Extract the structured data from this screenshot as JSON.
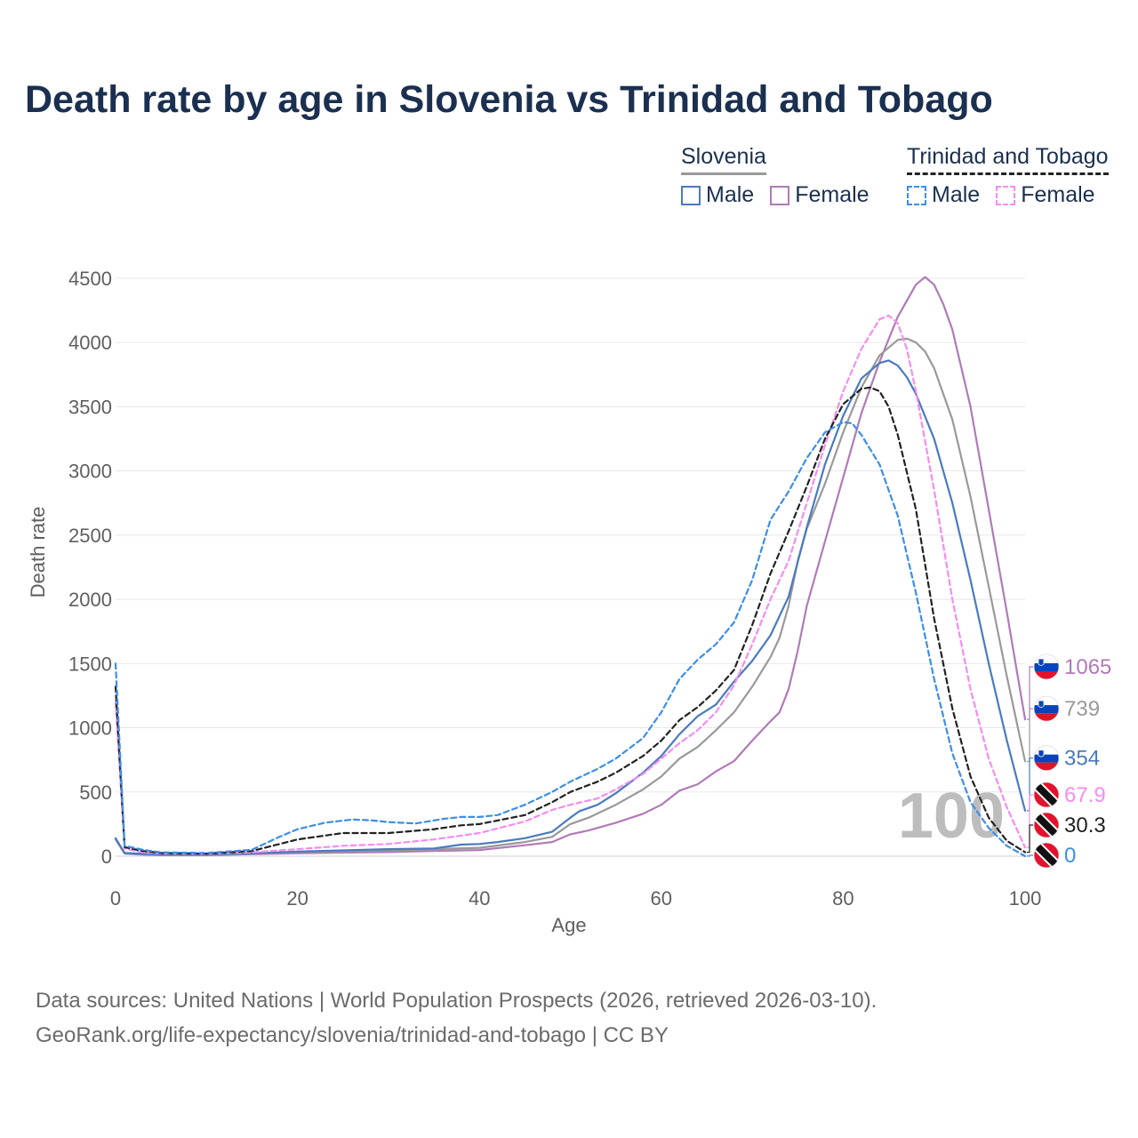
{
  "title": "Death rate by age in Slovenia vs Trinidad and Tobago",
  "legend": {
    "groups": [
      {
        "label": "Slovenia",
        "line_style": "solid",
        "color": "#999999",
        "items": [
          {
            "label": "Male",
            "color": "#4a7abf",
            "dash": false
          },
          {
            "label": "Female",
            "color": "#b07ab8",
            "dash": false
          }
        ]
      },
      {
        "label": "Trinidad and Tobago",
        "line_style": "dashed",
        "color": "#222222",
        "items": [
          {
            "label": "Male",
            "color": "#3c8ee8",
            "dash": true
          },
          {
            "label": "Female",
            "color": "#f58cf0",
            "dash": true
          }
        ]
      }
    ]
  },
  "watermark": "100",
  "footer": {
    "line1": "Data sources: United Nations | World Population Prospects (2026, retrieved 2026-03-10).",
    "line2": "GeoRank.org/life-expectancy/slovenia/trinidad-and-tobago | CC BY"
  },
  "chart_data": {
    "type": "line",
    "xlabel": "Age",
    "ylabel": "Death rate",
    "xlim": [
      0,
      100
    ],
    "ylim": [
      0,
      4500
    ],
    "xticks": [
      0,
      20,
      40,
      60,
      80,
      100
    ],
    "yticks": [
      0,
      500,
      1000,
      1500,
      2000,
      2500,
      3000,
      3500,
      4000,
      4500
    ],
    "grid": true,
    "series": [
      {
        "name": "Slovenia Female",
        "country": "Slovenia",
        "color": "#b07ab8",
        "dash": false,
        "end_label": "1065",
        "points": [
          [
            0,
            130
          ],
          [
            1,
            20
          ],
          [
            3,
            12
          ],
          [
            5,
            8
          ],
          [
            10,
            8
          ],
          [
            15,
            15
          ],
          [
            20,
            22
          ],
          [
            25,
            28
          ],
          [
            30,
            32
          ],
          [
            35,
            40
          ],
          [
            40,
            48
          ],
          [
            45,
            85
          ],
          [
            48,
            110
          ],
          [
            50,
            170
          ],
          [
            52,
            200
          ],
          [
            55,
            260
          ],
          [
            58,
            330
          ],
          [
            60,
            400
          ],
          [
            62,
            510
          ],
          [
            64,
            560
          ],
          [
            66,
            660
          ],
          [
            68,
            740
          ],
          [
            70,
            900
          ],
          [
            72,
            1050
          ],
          [
            73,
            1120
          ],
          [
            74,
            1300
          ],
          [
            75,
            1600
          ],
          [
            76,
            1950
          ],
          [
            78,
            2450
          ],
          [
            80,
            2950
          ],
          [
            82,
            3450
          ],
          [
            84,
            3850
          ],
          [
            86,
            4200
          ],
          [
            88,
            4450
          ],
          [
            89,
            4510
          ],
          [
            90,
            4450
          ],
          [
            91,
            4300
          ],
          [
            92,
            4100
          ],
          [
            94,
            3500
          ],
          [
            96,
            2700
          ],
          [
            98,
            1900
          ],
          [
            100,
            1065
          ]
        ]
      },
      {
        "name": "Slovenia Total",
        "country": "Slovenia",
        "color": "#999999",
        "dash": false,
        "end_label": "739",
        "points": [
          [
            0,
            135
          ],
          [
            1,
            22
          ],
          [
            3,
            15
          ],
          [
            5,
            10
          ],
          [
            10,
            10
          ],
          [
            15,
            20
          ],
          [
            20,
            30
          ],
          [
            25,
            38
          ],
          [
            30,
            45
          ],
          [
            35,
            55
          ],
          [
            40,
            65
          ],
          [
            45,
            110
          ],
          [
            48,
            150
          ],
          [
            50,
            250
          ],
          [
            52,
            300
          ],
          [
            55,
            400
          ],
          [
            58,
            520
          ],
          [
            60,
            620
          ],
          [
            62,
            760
          ],
          [
            64,
            850
          ],
          [
            66,
            980
          ],
          [
            68,
            1120
          ],
          [
            70,
            1320
          ],
          [
            72,
            1550
          ],
          [
            73,
            1700
          ],
          [
            74,
            1950
          ],
          [
            75,
            2300
          ],
          [
            76,
            2550
          ],
          [
            78,
            2900
          ],
          [
            80,
            3300
          ],
          [
            82,
            3650
          ],
          [
            84,
            3900
          ],
          [
            86,
            4020
          ],
          [
            87,
            4030
          ],
          [
            88,
            4000
          ],
          [
            89,
            3930
          ],
          [
            90,
            3800
          ],
          [
            92,
            3400
          ],
          [
            94,
            2800
          ],
          [
            96,
            2100
          ],
          [
            98,
            1400
          ],
          [
            100,
            739
          ]
        ]
      },
      {
        "name": "Slovenia Male",
        "country": "Slovenia",
        "color": "#4a7abf",
        "dash": false,
        "end_label": "354",
        "points": [
          [
            0,
            140
          ],
          [
            1,
            25
          ],
          [
            3,
            18
          ],
          [
            5,
            12
          ],
          [
            10,
            12
          ],
          [
            15,
            22
          ],
          [
            20,
            35
          ],
          [
            25,
            45
          ],
          [
            30,
            55
          ],
          [
            35,
            60
          ],
          [
            38,
            90
          ],
          [
            40,
            95
          ],
          [
            42,
            110
          ],
          [
            45,
            140
          ],
          [
            48,
            190
          ],
          [
            50,
            300
          ],
          [
            51,
            350
          ],
          [
            53,
            400
          ],
          [
            55,
            490
          ],
          [
            58,
            650
          ],
          [
            60,
            780
          ],
          [
            62,
            950
          ],
          [
            64,
            1090
          ],
          [
            66,
            1180
          ],
          [
            68,
            1360
          ],
          [
            70,
            1520
          ],
          [
            72,
            1720
          ],
          [
            74,
            2020
          ],
          [
            76,
            2560
          ],
          [
            78,
            3050
          ],
          [
            80,
            3430
          ],
          [
            82,
            3720
          ],
          [
            84,
            3840
          ],
          [
            85,
            3860
          ],
          [
            86,
            3820
          ],
          [
            87,
            3730
          ],
          [
            88,
            3600
          ],
          [
            90,
            3250
          ],
          [
            92,
            2750
          ],
          [
            94,
            2150
          ],
          [
            96,
            1500
          ],
          [
            98,
            900
          ],
          [
            100,
            354
          ]
        ]
      },
      {
        "name": "Trinidad and Tobago Female",
        "country": "Trinidad and Tobago",
        "color": "#f58cf0",
        "dash": true,
        "end_label": "67.9",
        "points": [
          [
            0,
            1200
          ],
          [
            1,
            60
          ],
          [
            3,
            30
          ],
          [
            5,
            20
          ],
          [
            10,
            18
          ],
          [
            15,
            30
          ],
          [
            20,
            55
          ],
          [
            25,
            80
          ],
          [
            30,
            95
          ],
          [
            35,
            130
          ],
          [
            40,
            180
          ],
          [
            45,
            270
          ],
          [
            48,
            360
          ],
          [
            50,
            400
          ],
          [
            53,
            450
          ],
          [
            55,
            520
          ],
          [
            58,
            640
          ],
          [
            60,
            760
          ],
          [
            62,
            880
          ],
          [
            64,
            980
          ],
          [
            66,
            1120
          ],
          [
            68,
            1330
          ],
          [
            70,
            1650
          ],
          [
            72,
            2000
          ],
          [
            74,
            2300
          ],
          [
            76,
            2750
          ],
          [
            78,
            3200
          ],
          [
            80,
            3620
          ],
          [
            82,
            3950
          ],
          [
            84,
            4180
          ],
          [
            85,
            4210
          ],
          [
            86,
            4150
          ],
          [
            87,
            3950
          ],
          [
            88,
            3620
          ],
          [
            90,
            2850
          ],
          [
            92,
            2000
          ],
          [
            94,
            1300
          ],
          [
            96,
            760
          ],
          [
            98,
            380
          ],
          [
            100,
            67.9
          ]
        ]
      },
      {
        "name": "Trinidad and Tobago Total",
        "country": "Trinidad and Tobago",
        "color": "#222222",
        "dash": true,
        "end_label": "30.3",
        "points": [
          [
            0,
            1320
          ],
          [
            1,
            70
          ],
          [
            3,
            40
          ],
          [
            5,
            25
          ],
          [
            10,
            20
          ],
          [
            15,
            40
          ],
          [
            20,
            130
          ],
          [
            25,
            180
          ],
          [
            30,
            180
          ],
          [
            35,
            210
          ],
          [
            38,
            240
          ],
          [
            40,
            250
          ],
          [
            45,
            320
          ],
          [
            48,
            420
          ],
          [
            50,
            500
          ],
          [
            53,
            580
          ],
          [
            55,
            650
          ],
          [
            58,
            780
          ],
          [
            60,
            900
          ],
          [
            62,
            1060
          ],
          [
            64,
            1160
          ],
          [
            66,
            1290
          ],
          [
            68,
            1450
          ],
          [
            70,
            1800
          ],
          [
            72,
            2200
          ],
          [
            74,
            2530
          ],
          [
            76,
            2880
          ],
          [
            78,
            3250
          ],
          [
            80,
            3520
          ],
          [
            82,
            3640
          ],
          [
            83,
            3650
          ],
          [
            84,
            3620
          ],
          [
            85,
            3500
          ],
          [
            86,
            3280
          ],
          [
            88,
            2700
          ],
          [
            90,
            1850
          ],
          [
            92,
            1150
          ],
          [
            94,
            620
          ],
          [
            96,
            300
          ],
          [
            98,
            120
          ],
          [
            100,
            30.3
          ]
        ]
      },
      {
        "name": "Trinidad and Tobago Male",
        "country": "Trinidad and Tobago",
        "color": "#3c8ee8",
        "dash": true,
        "end_label": "0",
        "points": [
          [
            0,
            1500
          ],
          [
            1,
            80
          ],
          [
            3,
            50
          ],
          [
            5,
            30
          ],
          [
            10,
            25
          ],
          [
            15,
            50
          ],
          [
            18,
            150
          ],
          [
            20,
            210
          ],
          [
            23,
            260
          ],
          [
            26,
            285
          ],
          [
            28,
            280
          ],
          [
            30,
            265
          ],
          [
            33,
            255
          ],
          [
            36,
            290
          ],
          [
            38,
            305
          ],
          [
            40,
            305
          ],
          [
            42,
            320
          ],
          [
            45,
            400
          ],
          [
            48,
            500
          ],
          [
            50,
            580
          ],
          [
            53,
            680
          ],
          [
            55,
            760
          ],
          [
            58,
            920
          ],
          [
            60,
            1120
          ],
          [
            62,
            1380
          ],
          [
            64,
            1530
          ],
          [
            66,
            1650
          ],
          [
            68,
            1820
          ],
          [
            70,
            2150
          ],
          [
            72,
            2620
          ],
          [
            74,
            2840
          ],
          [
            76,
            3100
          ],
          [
            78,
            3300
          ],
          [
            80,
            3380
          ],
          [
            81,
            3370
          ],
          [
            82,
            3280
          ],
          [
            84,
            3050
          ],
          [
            86,
            2650
          ],
          [
            88,
            2050
          ],
          [
            90,
            1380
          ],
          [
            92,
            800
          ],
          [
            94,
            420
          ],
          [
            96,
            220
          ],
          [
            98,
            80
          ],
          [
            100,
            0
          ]
        ]
      }
    ]
  }
}
